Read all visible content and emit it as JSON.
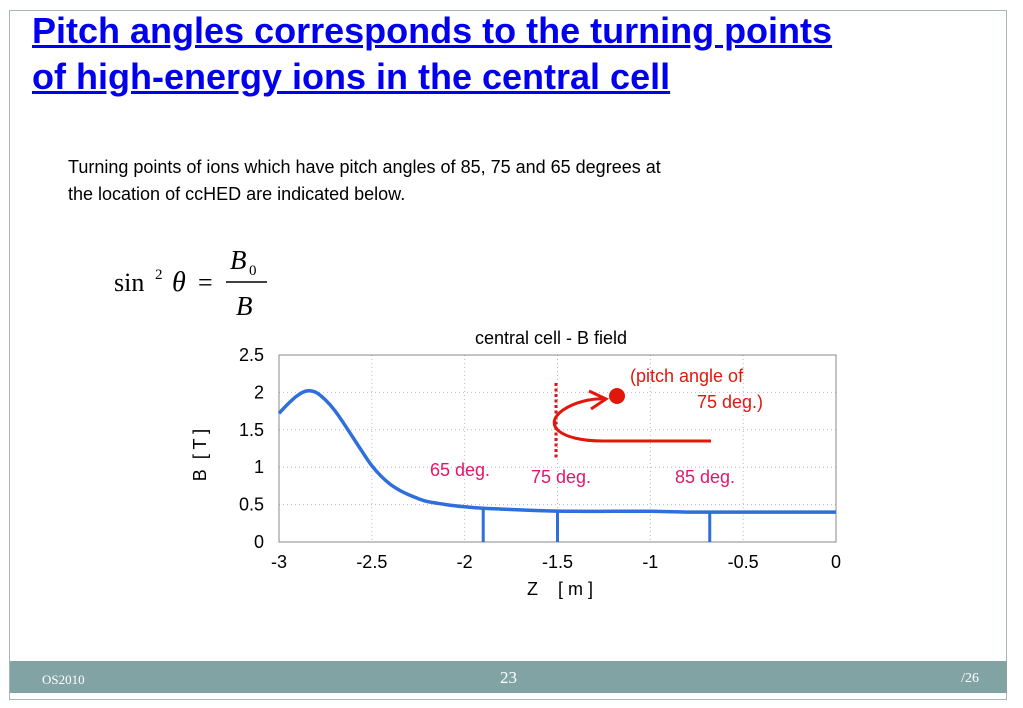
{
  "slide": {
    "title_line1": "Pitch angles corresponds to the turning points",
    "title_line2": "of high-energy ions in the central cell",
    "body_line1": "Turning points of ions which have pitch angles of 85, 75 and 65 degrees at",
    "body_line2": "the location of ccHED are indicated below."
  },
  "formula": {
    "sin_label": "sin",
    "exponent": "2",
    "theta": "θ",
    "equals": "=",
    "numerator": "B",
    "numerator_subscript": "0",
    "denominator": "B"
  },
  "chart_data": {
    "type": "line",
    "title": "central cell - B field",
    "xlabel": "Z    [ m ]",
    "ylabel": "B  [ T ]",
    "xlim": [
      -3,
      0
    ],
    "ylim": [
      0,
      2.5
    ],
    "x_ticks": [
      "-3",
      "-2.5",
      "-2",
      "-1.5",
      "-1",
      "-0.5",
      "0"
    ],
    "y_ticks": [
      "2.5",
      "2",
      "1.5",
      "1",
      "0.5",
      "0"
    ],
    "grid": true,
    "line_color": "#2f6fdc",
    "series": [
      {
        "x": [
          -3.0,
          -2.95,
          -2.9,
          -2.85,
          -2.8,
          -2.75,
          -2.7,
          -2.65,
          -2.6,
          -2.55,
          -2.5,
          -2.45,
          -2.4,
          -2.35,
          -2.3,
          -2.25,
          -2.2,
          -2.1,
          -2.0,
          -1.9,
          -1.8,
          -1.6,
          -1.4,
          -1.2,
          -1.0,
          -0.8,
          -0.6,
          -0.4,
          -0.2,
          0.0
        ],
        "y": [
          1.72,
          1.85,
          1.96,
          2.02,
          2.0,
          1.9,
          1.76,
          1.58,
          1.39,
          1.2,
          1.02,
          0.88,
          0.77,
          0.69,
          0.63,
          0.58,
          0.54,
          0.5,
          0.47,
          0.45,
          0.44,
          0.42,
          0.41,
          0.41,
          0.41,
          0.4,
          0.4,
          0.4,
          0.4,
          0.4
        ]
      }
    ],
    "markers": [
      {
        "label": "65 deg.",
        "x": -1.9,
        "color": "#e0186c"
      },
      {
        "label": "75 deg.",
        "x": -1.5,
        "color": "#e0186c"
      },
      {
        "label": "85 deg.",
        "x": -0.68,
        "color": "#e0186c"
      }
    ],
    "annotation": {
      "line1": "(pitch angle of",
      "line2": "75 deg.)",
      "color": "#e0180c"
    }
  }
}
